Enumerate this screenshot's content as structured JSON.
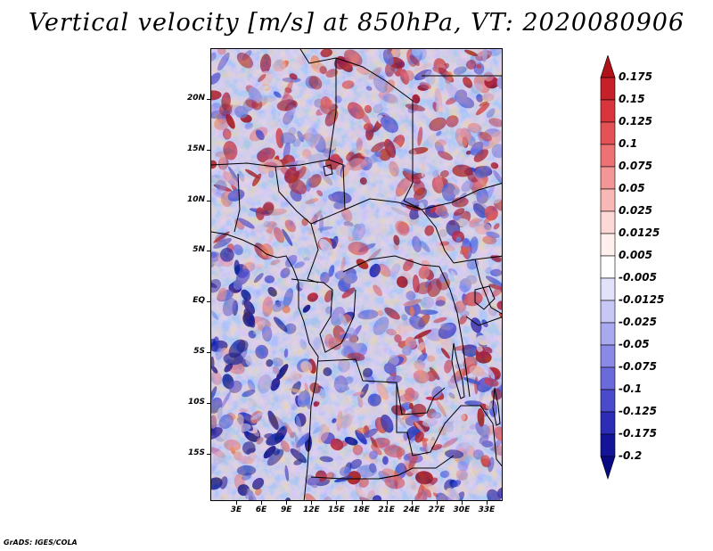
{
  "title": "Vertical velocity [m/s] at 850hPa, VT: 2020080906",
  "footer": "GrADS: IGES/COLA",
  "map": {
    "lat_labels": [
      "20N",
      "15N",
      "10N",
      "5N",
      "EQ",
      "5S",
      "10S",
      "15S"
    ],
    "lon_labels": [
      "3E",
      "6E",
      "9E",
      "12E",
      "15E",
      "18E",
      "21E",
      "24E",
      "27E",
      "30E",
      "33E"
    ],
    "lat_range": [
      -20,
      24.5
    ],
    "lon_range": [
      0,
      35
    ]
  },
  "colorbar": {
    "labels": [
      "0.175",
      "0.15",
      "0.125",
      "0.1",
      "0.075",
      "0.05",
      "0.025",
      "0.0125",
      "0.005",
      "-0.005",
      "-0.0125",
      "-0.025",
      "-0.05",
      "-0.075",
      "-0.1",
      "-0.125",
      "-0.175",
      "-0.2"
    ],
    "colors": [
      "#b01218",
      "#c62028",
      "#d8363c",
      "#e45256",
      "#ec7274",
      "#f39696",
      "#f8b8b6",
      "#fcd8d6",
      "#fff0ee",
      "#ffffff",
      "#e2e2fb",
      "#c8c8f6",
      "#a9a9f0",
      "#8a8ae6",
      "#6a6ada",
      "#4a4acc",
      "#2c2cb6",
      "#14149a",
      "#0a0a84"
    ]
  }
}
